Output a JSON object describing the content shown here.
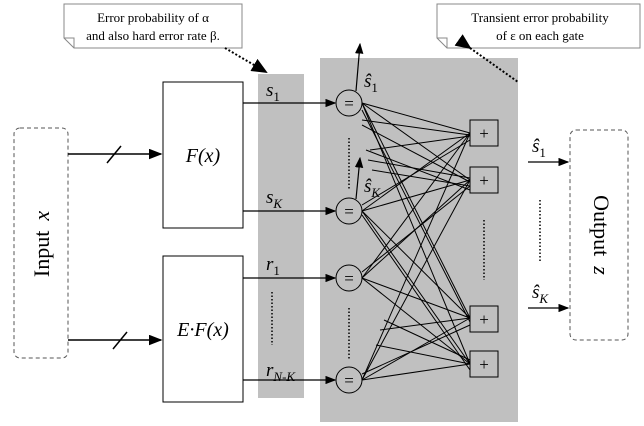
{
  "callouts": {
    "left": {
      "line1": "Error probability of α",
      "line2": "and also hard error rate  β."
    },
    "right": {
      "line1": "Transient error probability",
      "line2": "of ε on each gate"
    }
  },
  "input_box": {
    "label": "Input",
    "var": "x"
  },
  "output_box": {
    "label": "Output",
    "var": "z"
  },
  "encoder_top": {
    "label": "F(x)"
  },
  "encoder_bottom": {
    "label": "E·F(x)"
  },
  "signals": {
    "s1": {
      "base": "s",
      "sub": "1"
    },
    "sK": {
      "base": "s",
      "sub": "K"
    },
    "r1": {
      "base": "r",
      "sub": "1"
    },
    "rNK": {
      "base": "r",
      "sub": "N-K"
    }
  },
  "estimates": {
    "s1_hat": {
      "base": "ŝ",
      "sub": "1"
    },
    "sK_hat": {
      "base": "ŝ",
      "sub": "K"
    },
    "out1_hat": {
      "base": "ŝ",
      "sub": "1"
    },
    "outK_hat": {
      "base": "ŝ",
      "sub": "K"
    }
  },
  "gate_symbols": {
    "equal": "=",
    "plus": "+"
  },
  "colors": {
    "shade": "#c0c0c0",
    "stroke": "#000000",
    "dashed": "#555555"
  }
}
